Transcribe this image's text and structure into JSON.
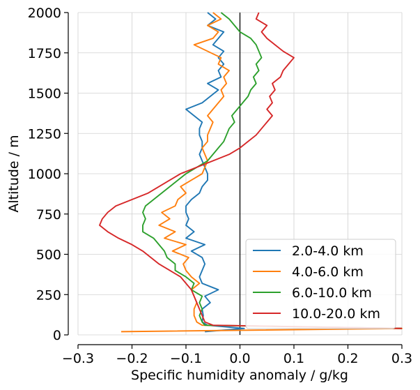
{
  "chart_data": {
    "type": "line",
    "title": "",
    "xlabel": "Specific humidity anomaly / g/kg",
    "ylabel": "Altitude / m",
    "xlim": [
      -0.3,
      0.3
    ],
    "ylim": [
      0,
      2000
    ],
    "xticks": [
      -0.3,
      -0.2,
      -0.1,
      0.0,
      0.1,
      0.2,
      0.3
    ],
    "xtick_labels": [
      "−0.3",
      "−0.2",
      "−0.1",
      "0.0",
      "0.1",
      "0.2",
      "0.3"
    ],
    "yticks": [
      0,
      250,
      500,
      750,
      1000,
      1250,
      1500,
      1750,
      2000
    ],
    "ytick_labels": [
      "0",
      "250",
      "500",
      "750",
      "1000",
      "1250",
      "1500",
      "1750",
      "2000"
    ],
    "grid": true,
    "zero_line": 0.0,
    "legend_position": "lower-right",
    "series": [
      {
        "name": "2.0-4.0 km",
        "color": "#1f77b4",
        "points": [
          [
            -0.065,
            20
          ],
          [
            0.008,
            40
          ],
          [
            -0.06,
            60
          ],
          [
            -0.07,
            80
          ],
          [
            -0.068,
            120
          ],
          [
            -0.07,
            160
          ],
          [
            -0.055,
            200
          ],
          [
            -0.065,
            240
          ],
          [
            -0.04,
            280
          ],
          [
            -0.07,
            320
          ],
          [
            -0.075,
            360
          ],
          [
            -0.07,
            400
          ],
          [
            -0.065,
            440
          ],
          [
            -0.07,
            480
          ],
          [
            -0.09,
            520
          ],
          [
            -0.065,
            560
          ],
          [
            -0.1,
            600
          ],
          [
            -0.085,
            640
          ],
          [
            -0.1,
            680
          ],
          [
            -0.095,
            720
          ],
          [
            -0.1,
            760
          ],
          [
            -0.1,
            800
          ],
          [
            -0.09,
            840
          ],
          [
            -0.075,
            880
          ],
          [
            -0.07,
            920
          ],
          [
            -0.06,
            960
          ],
          [
            -0.06,
            1000
          ],
          [
            -0.065,
            1040
          ],
          [
            -0.07,
            1080
          ],
          [
            -0.075,
            1120
          ],
          [
            -0.07,
            1160
          ],
          [
            -0.07,
            1200
          ],
          [
            -0.075,
            1240
          ],
          [
            -0.075,
            1280
          ],
          [
            -0.07,
            1320
          ],
          [
            -0.085,
            1360
          ],
          [
            -0.1,
            1400
          ],
          [
            -0.07,
            1440
          ],
          [
            -0.055,
            1480
          ],
          [
            -0.04,
            1520
          ],
          [
            -0.06,
            1560
          ],
          [
            -0.035,
            1600
          ],
          [
            -0.04,
            1640
          ],
          [
            -0.03,
            1680
          ],
          [
            -0.04,
            1720
          ],
          [
            -0.03,
            1760
          ],
          [
            -0.05,
            1800
          ],
          [
            -0.04,
            1840
          ],
          [
            -0.03,
            1880
          ],
          [
            -0.06,
            1920
          ],
          [
            -0.045,
            1960
          ],
          [
            -0.06,
            2000
          ]
        ]
      },
      {
        "name": "4.0-6.0 km",
        "color": "#ff7f0e",
        "points": [
          [
            -0.22,
            20
          ],
          [
            0.3,
            40
          ],
          [
            -0.07,
            60
          ],
          [
            -0.08,
            80
          ],
          [
            -0.085,
            120
          ],
          [
            -0.085,
            160
          ],
          [
            -0.08,
            200
          ],
          [
            -0.085,
            240
          ],
          [
            -0.09,
            280
          ],
          [
            -0.075,
            320
          ],
          [
            -0.09,
            360
          ],
          [
            -0.1,
            400
          ],
          [
            -0.105,
            440
          ],
          [
            -0.095,
            480
          ],
          [
            -0.125,
            520
          ],
          [
            -0.1,
            560
          ],
          [
            -0.14,
            600
          ],
          [
            -0.12,
            640
          ],
          [
            -0.15,
            680
          ],
          [
            -0.13,
            720
          ],
          [
            -0.145,
            760
          ],
          [
            -0.12,
            800
          ],
          [
            -0.115,
            840
          ],
          [
            -0.1,
            880
          ],
          [
            -0.11,
            920
          ],
          [
            -0.09,
            960
          ],
          [
            -0.07,
            1000
          ],
          [
            -0.065,
            1040
          ],
          [
            -0.06,
            1080
          ],
          [
            -0.065,
            1120
          ],
          [
            -0.07,
            1160
          ],
          [
            -0.06,
            1200
          ],
          [
            -0.06,
            1240
          ],
          [
            -0.055,
            1280
          ],
          [
            -0.05,
            1320
          ],
          [
            -0.06,
            1360
          ],
          [
            -0.05,
            1400
          ],
          [
            -0.04,
            1440
          ],
          [
            -0.03,
            1480
          ],
          [
            -0.035,
            1520
          ],
          [
            -0.025,
            1560
          ],
          [
            -0.03,
            1600
          ],
          [
            -0.02,
            1640
          ],
          [
            -0.04,
            1680
          ],
          [
            -0.035,
            1720
          ],
          [
            -0.06,
            1760
          ],
          [
            -0.085,
            1800
          ],
          [
            -0.05,
            1840
          ],
          [
            -0.04,
            1880
          ],
          [
            -0.06,
            1920
          ],
          [
            -0.035,
            1960
          ],
          [
            -0.05,
            2000
          ]
        ]
      },
      {
        "name": "6.0-10.0 km",
        "color": "#2ca02c",
        "points": [
          [
            0.3,
            40
          ],
          [
            -0.065,
            60
          ],
          [
            -0.07,
            80
          ],
          [
            -0.075,
            120
          ],
          [
            -0.07,
            160
          ],
          [
            -0.075,
            200
          ],
          [
            -0.07,
            240
          ],
          [
            -0.09,
            280
          ],
          [
            -0.085,
            320
          ],
          [
            -0.1,
            360
          ],
          [
            -0.12,
            400
          ],
          [
            -0.12,
            440
          ],
          [
            -0.135,
            480
          ],
          [
            -0.14,
            520
          ],
          [
            -0.15,
            560
          ],
          [
            -0.16,
            600
          ],
          [
            -0.18,
            640
          ],
          [
            -0.18,
            680
          ],
          [
            -0.175,
            720
          ],
          [
            -0.18,
            760
          ],
          [
            -0.175,
            800
          ],
          [
            -0.16,
            840
          ],
          [
            -0.145,
            880
          ],
          [
            -0.13,
            920
          ],
          [
            -0.115,
            960
          ],
          [
            -0.1,
            1000
          ],
          [
            -0.08,
            1040
          ],
          [
            -0.06,
            1080
          ],
          [
            -0.05,
            1120
          ],
          [
            -0.04,
            1160
          ],
          [
            -0.03,
            1200
          ],
          [
            -0.025,
            1240
          ],
          [
            -0.02,
            1280
          ],
          [
            -0.01,
            1320
          ],
          [
            -0.015,
            1360
          ],
          [
            -0.005,
            1400
          ],
          [
            0.005,
            1440
          ],
          [
            0.015,
            1480
          ],
          [
            0.02,
            1520
          ],
          [
            0.03,
            1560
          ],
          [
            0.025,
            1600
          ],
          [
            0.035,
            1640
          ],
          [
            0.03,
            1680
          ],
          [
            0.04,
            1720
          ],
          [
            0.035,
            1760
          ],
          [
            0.03,
            1800
          ],
          [
            0.02,
            1840
          ],
          [
            0.0,
            1880
          ],
          [
            -0.01,
            1920
          ],
          [
            -0.02,
            1960
          ],
          [
            -0.035,
            2000
          ]
        ]
      },
      {
        "name": "10.0-20.0 km",
        "color": "#d62728",
        "points": [
          [
            0.3,
            40
          ],
          [
            -0.05,
            60
          ],
          [
            -0.065,
            80
          ],
          [
            -0.07,
            120
          ],
          [
            -0.075,
            160
          ],
          [
            -0.08,
            200
          ],
          [
            -0.085,
            240
          ],
          [
            -0.09,
            280
          ],
          [
            -0.1,
            320
          ],
          [
            -0.11,
            360
          ],
          [
            -0.13,
            400
          ],
          [
            -0.15,
            440
          ],
          [
            -0.165,
            480
          ],
          [
            -0.18,
            520
          ],
          [
            -0.2,
            560
          ],
          [
            -0.225,
            600
          ],
          [
            -0.245,
            640
          ],
          [
            -0.26,
            680
          ],
          [
            -0.255,
            720
          ],
          [
            -0.245,
            760
          ],
          [
            -0.23,
            800
          ],
          [
            -0.2,
            840
          ],
          [
            -0.17,
            880
          ],
          [
            -0.15,
            920
          ],
          [
            -0.13,
            960
          ],
          [
            -0.11,
            1000
          ],
          [
            -0.08,
            1040
          ],
          [
            -0.05,
            1080
          ],
          [
            -0.02,
            1120
          ],
          [
            0.0,
            1160
          ],
          [
            0.015,
            1200
          ],
          [
            0.03,
            1240
          ],
          [
            0.04,
            1280
          ],
          [
            0.05,
            1320
          ],
          [
            0.06,
            1360
          ],
          [
            0.05,
            1400
          ],
          [
            0.06,
            1440
          ],
          [
            0.055,
            1480
          ],
          [
            0.065,
            1520
          ],
          [
            0.06,
            1560
          ],
          [
            0.075,
            1600
          ],
          [
            0.08,
            1640
          ],
          [
            0.09,
            1680
          ],
          [
            0.1,
            1720
          ],
          [
            0.08,
            1760
          ],
          [
            0.065,
            1800
          ],
          [
            0.05,
            1840
          ],
          [
            0.04,
            1880
          ],
          [
            0.05,
            1920
          ],
          [
            0.03,
            1960
          ],
          [
            0.035,
            2000
          ]
        ]
      }
    ]
  }
}
